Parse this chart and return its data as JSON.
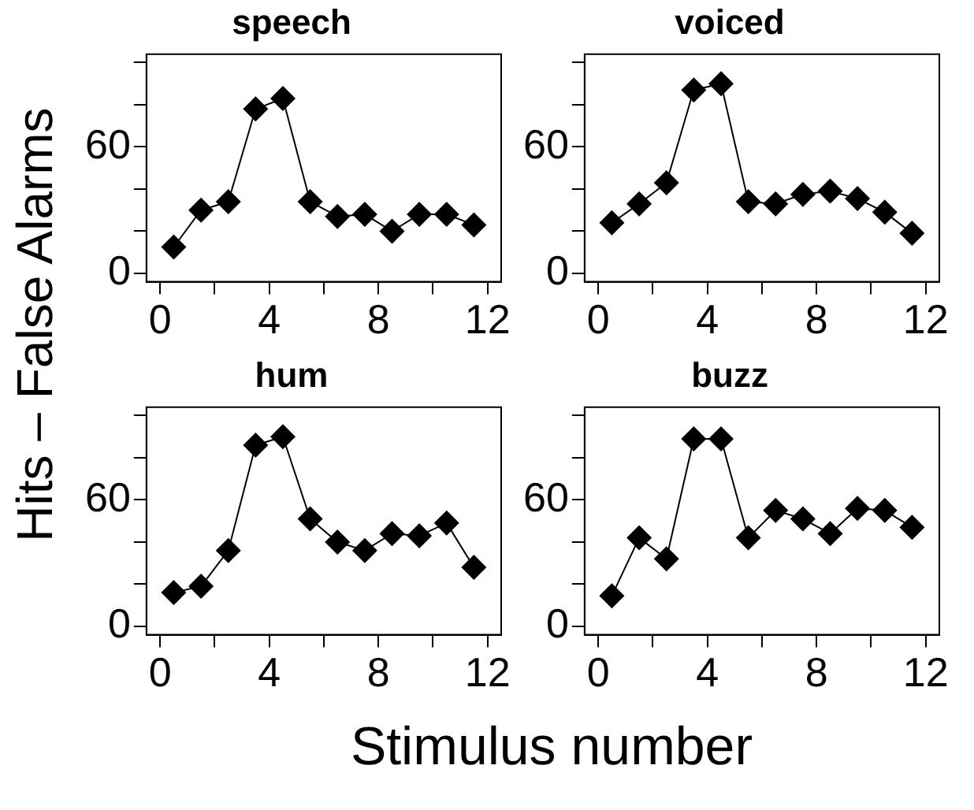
{
  "chart_data": [
    {
      "type": "line",
      "title": "speech",
      "ylabel": "Hits – False Alarms",
      "x": [
        0.5,
        1.5,
        2.5,
        3.5,
        4.5,
        5.5,
        6.5,
        7.5,
        8.5,
        9.5,
        10.5,
        11.5
      ],
      "series": [
        {
          "color": "#000000",
          "values": [
            12.5,
            30,
            34,
            78,
            83,
            34,
            27,
            28,
            20,
            28,
            28,
            23
          ]
        }
      ],
      "xlim": [
        -0.5,
        12.5
      ],
      "ylim": [
        -4,
        104
      ],
      "xticks": [
        {
          "value": 0,
          "label": "0"
        },
        {
          "value": 2,
          "label": null
        },
        4,
        {
          "value": 6,
          "label": null
        },
        8,
        {
          "value": 10,
          "label": null
        },
        12
      ],
      "yticks": [
        {
          "value": 0,
          "label": "0"
        },
        {
          "value": 20,
          "label": null
        },
        {
          "value": 40,
          "label": null
        },
        {
          "value": 60,
          "label": "60"
        },
        {
          "value": 80,
          "label": null
        },
        {
          "value": 100,
          "label": null
        }
      ],
      "grid": false,
      "legend": false,
      "marker": "diamond",
      "line_style": "solid"
    },
    {
      "type": "line",
      "title": "voiced",
      "x": [
        0.5,
        1.5,
        2.5,
        3.5,
        4.5,
        5.5,
        6.5,
        7.5,
        8.5,
        9.5,
        10.5,
        11.5
      ],
      "series": [
        {
          "color": "#000000",
          "values": [
            24,
            33,
            43,
            87,
            90,
            34,
            33,
            37.5,
            39,
            35.5,
            29,
            19
          ]
        }
      ],
      "xlim": [
        -0.5,
        12.5
      ],
      "ylim": [
        -4,
        104
      ],
      "xticks": [
        {
          "value": 0,
          "label": "0"
        },
        {
          "value": 2,
          "label": null
        },
        4,
        {
          "value": 6,
          "label": null
        },
        8,
        {
          "value": 10,
          "label": null
        },
        12
      ],
      "yticks": [
        {
          "value": 0,
          "label": "0"
        },
        {
          "value": 20,
          "label": null
        },
        {
          "value": 40,
          "label": null
        },
        {
          "value": 60,
          "label": "60"
        },
        {
          "value": 80,
          "label": null
        },
        {
          "value": 100,
          "label": null
        }
      ],
      "grid": false,
      "legend": false,
      "marker": "diamond",
      "line_style": "solid"
    },
    {
      "type": "line",
      "title": "hum",
      "xlabel": "Stimulus number",
      "x": [
        0.5,
        1.5,
        2.5,
        3.5,
        4.5,
        5.5,
        6.5,
        7.5,
        8.5,
        9.5,
        10.5,
        11.5
      ],
      "series": [
        {
          "color": "#000000",
          "values": [
            16,
            19,
            36,
            86,
            90,
            51,
            40,
            36,
            44,
            43,
            49,
            28
          ]
        }
      ],
      "xlim": [
        -0.5,
        12.5
      ],
      "ylim": [
        -4,
        104
      ],
      "xticks": [
        {
          "value": 0,
          "label": "0"
        },
        {
          "value": 2,
          "label": null
        },
        4,
        {
          "value": 6,
          "label": null
        },
        8,
        {
          "value": 10,
          "label": null
        },
        12
      ],
      "yticks": [
        {
          "value": 0,
          "label": "0"
        },
        {
          "value": 20,
          "label": null
        },
        {
          "value": 40,
          "label": null
        },
        {
          "value": 60,
          "label": "60"
        },
        {
          "value": 80,
          "label": null
        },
        {
          "value": 100,
          "label": null
        }
      ],
      "grid": false,
      "legend": false,
      "marker": "diamond",
      "line_style": "solid"
    },
    {
      "type": "line",
      "title": "buzz",
      "x": [
        0.5,
        1.5,
        2.5,
        3.5,
        4.5,
        5.5,
        6.5,
        7.5,
        8.5,
        9.5,
        10.5,
        11.5
      ],
      "series": [
        {
          "color": "#000000",
          "values": [
            14.5,
            42,
            32,
            89,
            89,
            42,
            55,
            51,
            44,
            56,
            55,
            47
          ]
        }
      ],
      "xlim": [
        -0.5,
        12.5
      ],
      "ylim": [
        -4,
        104
      ],
      "xticks": [
        {
          "value": 0,
          "label": "0"
        },
        {
          "value": 2,
          "label": null
        },
        4,
        {
          "value": 6,
          "label": null
        },
        8,
        {
          "value": 10,
          "label": null
        },
        12
      ],
      "yticks": [
        {
          "value": 0,
          "label": "0"
        },
        {
          "value": 20,
          "label": null
        },
        {
          "value": 40,
          "label": null
        },
        {
          "value": 60,
          "label": "60"
        },
        {
          "value": 80,
          "label": null
        },
        {
          "value": 100,
          "label": null
        }
      ],
      "grid": false,
      "legend": false,
      "marker": "diamond",
      "line_style": "solid"
    }
  ]
}
